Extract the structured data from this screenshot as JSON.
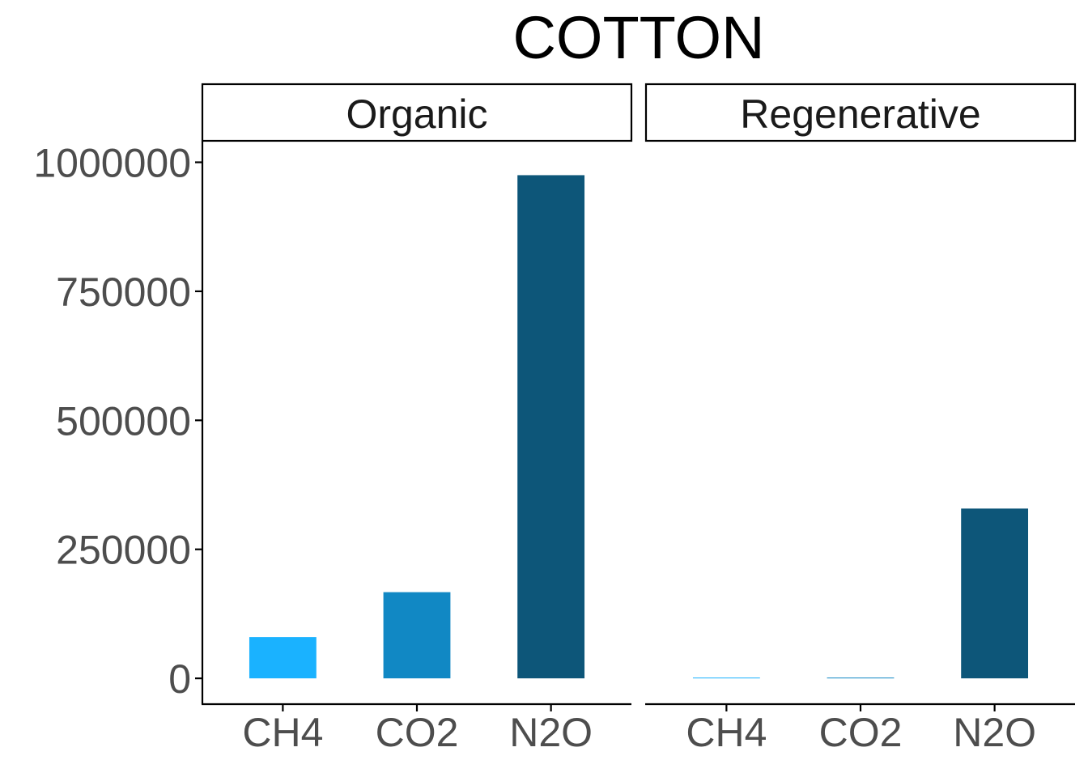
{
  "chart_data": {
    "type": "bar",
    "title": "COTTON",
    "xlabel": "",
    "ylabel": "",
    "ylim": [
      -50000,
      1040000
    ],
    "yticks": [
      0,
      250000,
      500000,
      750000,
      1000000
    ],
    "ytick_labels": [
      "0",
      "250000",
      "500000",
      "750000",
      "1000000"
    ],
    "categories": [
      "CH4",
      "CO2",
      "N2O"
    ],
    "grid": false,
    "legend": "none",
    "colors": {
      "CH4": "#1ab2ff",
      "CO2": "#1188c4",
      "N2O": "#0d5679",
      "axis": "#000000",
      "tick_text": "#4d4d4d"
    },
    "panels": [
      {
        "name": "Organic",
        "values": [
          80000,
          167000,
          975000
        ]
      },
      {
        "name": "Regenerative",
        "values": [
          1500,
          1500,
          329000
        ]
      }
    ]
  }
}
